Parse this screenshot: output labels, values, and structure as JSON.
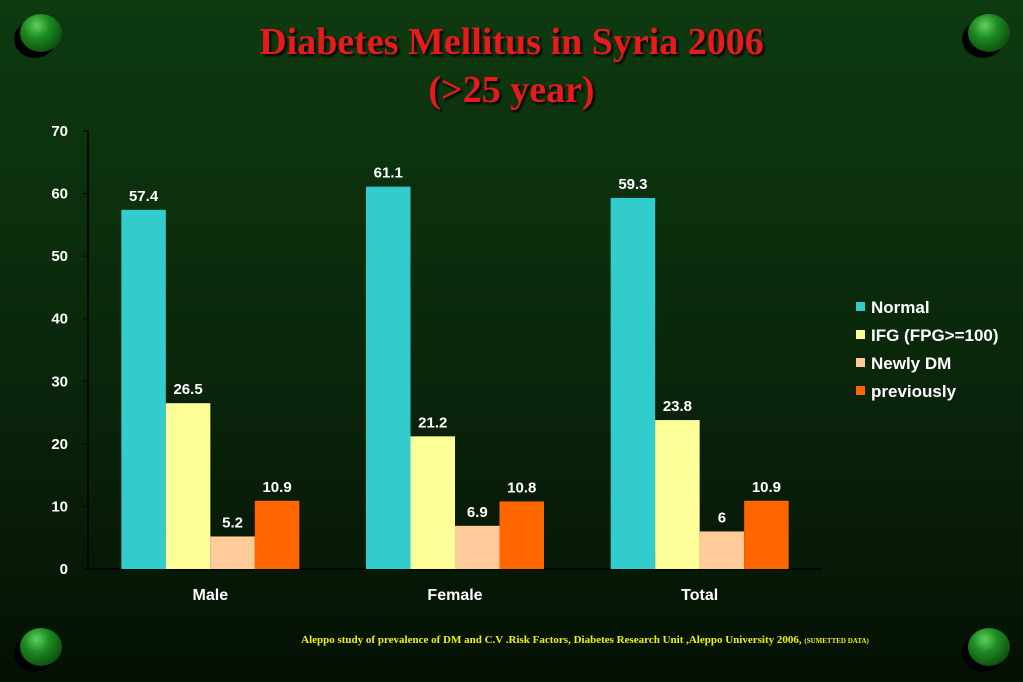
{
  "title_line1": "Diabetes Mellitus in Syria 2006",
  "title_line2": "(>25 year)",
  "footer_text": "Aleppo study of prevalence of DM and C.V .Risk Factors, Diabetes Research Unit ,Aleppo University 2006,",
  "footer_note": "(SUMETTED DATA)",
  "chart_data": {
    "type": "bar",
    "title": "Diabetes Mellitus in Syria 2006 (>25 year)",
    "categories": [
      "Male",
      "Female",
      "Total"
    ],
    "series": [
      {
        "name": "Normal",
        "color": "#33cccc",
        "values": [
          57.4,
          61.1,
          59.3
        ]
      },
      {
        "name": "IFG (FPG>=100)",
        "color": "#ffff99",
        "values": [
          26.5,
          21.2,
          23.8
        ]
      },
      {
        "name": "Newly DM",
        "color": "#ffcc99",
        "values": [
          5.2,
          6.9,
          6
        ]
      },
      {
        "name": "previously",
        "color": "#ff6600",
        "values": [
          10.9,
          10.8,
          10.9
        ]
      }
    ],
    "ylim": [
      0,
      70
    ],
    "yticks": [
      0,
      10,
      20,
      30,
      40,
      50,
      60,
      70
    ],
    "xlabel": "",
    "ylabel": "",
    "grid": false,
    "legend": "right",
    "label_color": "#ffffff"
  }
}
